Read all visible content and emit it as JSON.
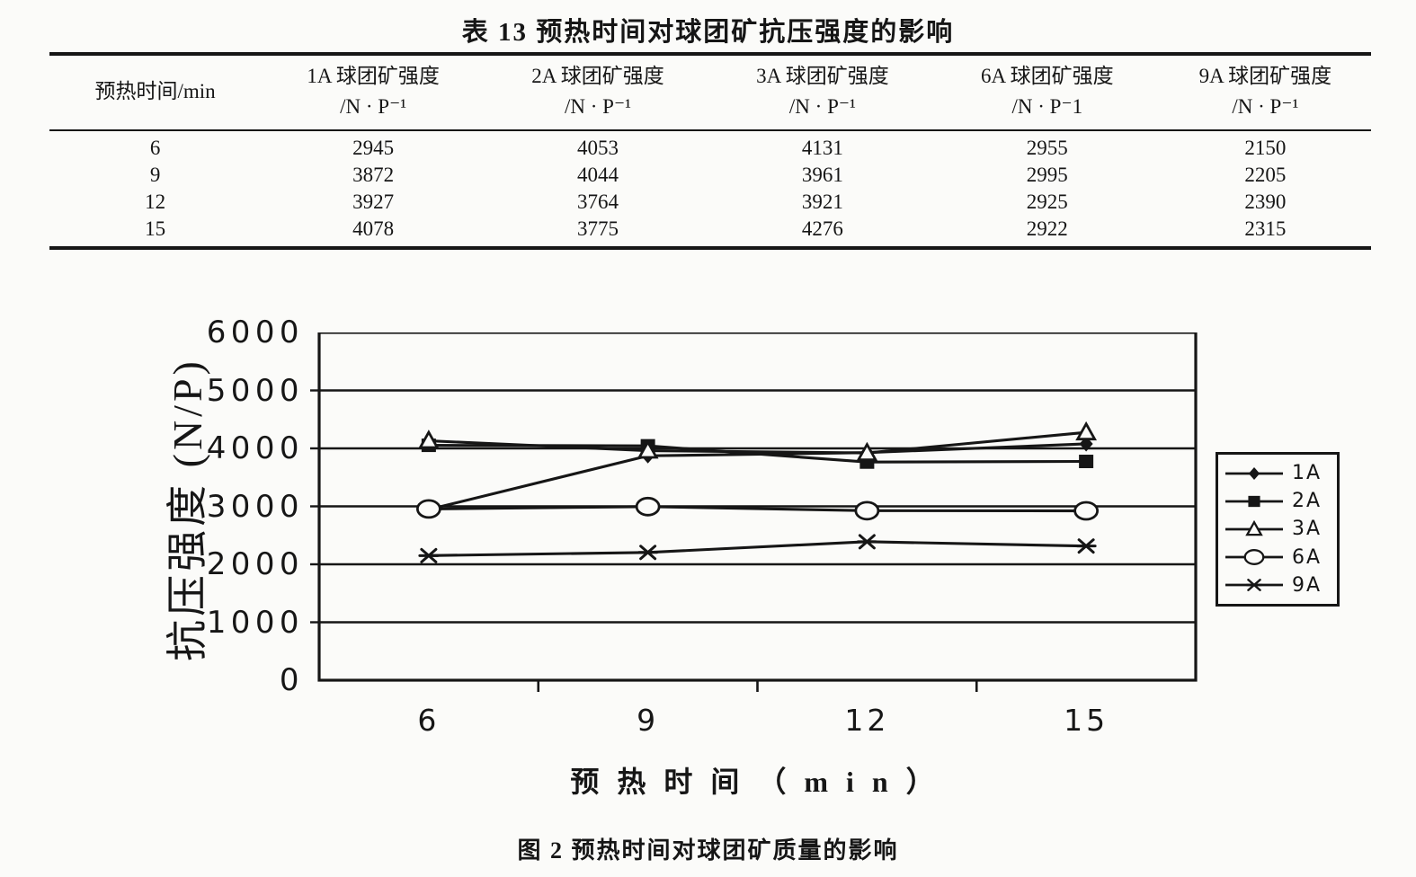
{
  "page": {
    "background": "#fbfbf9",
    "ink": "#161616"
  },
  "table": {
    "title": "表 13  预热时间对球团矿抗压强度的影响",
    "columns": [
      {
        "label": "预热时间/min",
        "unit": ""
      },
      {
        "label": "1A 球团矿强度",
        "unit": "/N · P⁻¹"
      },
      {
        "label": "2A 球团矿强度",
        "unit": "/N · P⁻¹"
      },
      {
        "label": "3A 球团矿强度",
        "unit": "/N · P⁻¹"
      },
      {
        "label": "6A 球团矿强度",
        "unit": "/N · P⁻1"
      },
      {
        "label": "9A 球团矿强度",
        "unit": "/N · P⁻¹"
      }
    ],
    "rows": [
      [
        "6",
        "2945",
        "4053",
        "4131",
        "2955",
        "2150"
      ],
      [
        "9",
        "3872",
        "4044",
        "3961",
        "2995",
        "2205"
      ],
      [
        "12",
        "3927",
        "3764",
        "3921",
        "2925",
        "2390"
      ],
      [
        "15",
        "4078",
        "3775",
        "4276",
        "2922",
        "2315"
      ]
    ]
  },
  "chart_data": {
    "type": "line",
    "categories": [
      6,
      9,
      12,
      15
    ],
    "xtick_labels": [
      "6",
      "9",
      "12",
      "15"
    ],
    "series": [
      {
        "name": "1A",
        "marker": "diamond-filled",
        "values": [
          2945,
          3872,
          3927,
          4078
        ]
      },
      {
        "name": "2A",
        "marker": "square-filled",
        "values": [
          4053,
          4044,
          3764,
          3775
        ]
      },
      {
        "name": "3A",
        "marker": "triangle-open",
        "values": [
          4131,
          3961,
          3921,
          4276
        ]
      },
      {
        "name": "6A",
        "marker": "circle-open",
        "values": [
          2955,
          2995,
          2925,
          2922
        ]
      },
      {
        "name": "9A",
        "marker": "asterisk",
        "values": [
          2150,
          2205,
          2390,
          2315
        ]
      }
    ],
    "xlabel": "预 热 时 间 （ m i n ）",
    "ylabel": "抗压强度 (N/P)",
    "ylim": [
      0,
      6000
    ],
    "ytick_interval": 1000,
    "yticks": [
      "0",
      "1000",
      "2000",
      "3000",
      "4000",
      "5000",
      "6000"
    ],
    "grid": "horizontal-gridlines-on",
    "legend_position": "right"
  },
  "figure_caption": "图 2  预热时间对球团矿质量的影响"
}
